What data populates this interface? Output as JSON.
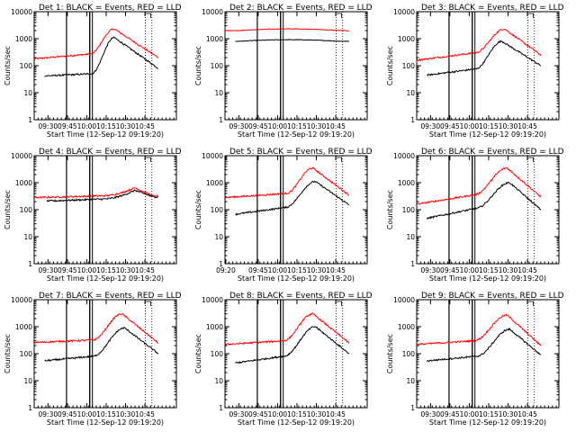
{
  "chart_data": [
    {
      "type": "line",
      "title": "Det 1: BLACK = Events, RED = LLD",
      "xlabel": "Start Time (12-Sep-12 09:19:20)",
      "ylabel": "Counts/sec",
      "ylog": true,
      "ylim": [
        1,
        10000
      ],
      "yticks": [
        "1",
        "10",
        "100",
        "1000",
        "10000"
      ],
      "xtick_labels": [
        "09:30",
        "09:45",
        "10:00",
        "10:15",
        "10:30",
        "10:45"
      ],
      "xrange_min": [
        0,
        110
      ],
      "xtick_min": [
        10.67,
        25.67,
        40.67,
        55.67,
        70.67,
        85.67
      ],
      "vlines": {
        "solid": [
          25,
          43
        ],
        "double": [
          44
        ],
        "dotted": [
          86,
          91
        ]
      },
      "series": [
        {
          "color": "#ff0000",
          "profile": "flare",
          "base": 180,
          "plateau": 270,
          "rise": [
            43,
            62
          ],
          "peak": 2300,
          "fall_end": 200,
          "start": 0
        },
        {
          "color": "#000000",
          "profile": "flare",
          "base": 40,
          "plateau": 50,
          "rise": [
            44,
            62
          ],
          "peak": 1100,
          "fall_end": 80,
          "start": 8
        }
      ]
    },
    {
      "type": "line",
      "title": "Det 2: BLACK = Events, RED = LLD",
      "xlabel": "Start Time (12-Sep-12 09:19:20)",
      "ylabel": "Counts/sec",
      "ylog": true,
      "ylim": [
        1,
        10000
      ],
      "yticks": [
        "1",
        "10",
        "100",
        "1000",
        "10000"
      ],
      "xtick_labels": [
        "09:30",
        "09:45",
        "10:00",
        "10:15",
        "10:30",
        "10:45"
      ],
      "xrange_min": [
        0,
        110
      ],
      "xtick_min": [
        10.67,
        25.67,
        40.67,
        55.67,
        70.67,
        85.67
      ],
      "vlines": {
        "solid": [
          25,
          43
        ],
        "double": [
          44
        ],
        "dotted": [
          86,
          91
        ]
      },
      "series": [
        {
          "color": "#ff0000",
          "profile": "flat",
          "base": 2000,
          "peak": 2400,
          "start": 0
        },
        {
          "color": "#000000",
          "profile": "flat",
          "base": 800,
          "peak": 950,
          "start": 8
        }
      ]
    },
    {
      "type": "line",
      "title": "Det 3: BLACK = Events, RED = LLD",
      "xlabel": "Start Time (12-Sep-12 09:19:20)",
      "ylabel": "Counts/sec",
      "ylog": true,
      "ylim": [
        1,
        10000
      ],
      "yticks": [
        "1",
        "10",
        "100",
        "1000",
        "10000"
      ],
      "xtick_labels": [
        "09:30",
        "09:45",
        "10:00",
        "10:15",
        "10:30",
        "10:45"
      ],
      "xrange_min": [
        0,
        110
      ],
      "xtick_min": [
        10.67,
        25.67,
        40.67,
        55.67,
        70.67,
        85.67
      ],
      "vlines": {
        "solid": [
          25,
          43
        ],
        "double": [
          44
        ],
        "dotted": [
          86,
          91
        ]
      },
      "series": [
        {
          "color": "#ff0000",
          "profile": "flare",
          "base": 160,
          "plateau": 300,
          "rise": [
            45,
            68
          ],
          "peak": 2300,
          "fall_end": 250,
          "start": 0
        },
        {
          "color": "#000000",
          "profile": "flare",
          "base": 40,
          "plateau": 75,
          "rise": [
            45,
            66
          ],
          "peak": 800,
          "fall_end": 100,
          "start": 8
        }
      ]
    },
    {
      "type": "line",
      "title": "Det 4: BLACK = Events, RED = LLD",
      "xlabel": "Start Time (12-Sep-12 09:19:20)",
      "ylabel": "Counts/sec",
      "ylog": true,
      "ylim": [
        1,
        10000
      ],
      "yticks": [
        "1",
        "10",
        "100",
        "1000",
        "10000"
      ],
      "xtick_labels": [
        "09:30",
        "09:45",
        "10:00",
        "10:15",
        "10:30",
        "10:45"
      ],
      "xrange_min": [
        0,
        110
      ],
      "xtick_min": [
        10.67,
        25.67,
        40.67,
        55.67,
        70.67,
        85.67
      ],
      "vlines": {
        "solid": [
          25,
          43
        ],
        "double": [
          44
        ],
        "dotted": [
          86,
          91
        ]
      },
      "series": [
        {
          "color": "#ff0000",
          "profile": "hump",
          "base": 280,
          "plateau": 330,
          "peak": 650,
          "fall_end": 320,
          "start": 0
        },
        {
          "color": "#000000",
          "profile": "hump",
          "base": 200,
          "plateau": 250,
          "peak": 520,
          "fall_end": 300,
          "start": 10
        }
      ]
    },
    {
      "type": "line",
      "title": "Det 5: BLACK = Events, RED = LLD",
      "xlabel": "Start Time (12-Sep-12 09:19:20)",
      "ylabel": "Counts/sec",
      "ylog": true,
      "ylim": [
        1,
        10000
      ],
      "yticks": [
        "1",
        "10",
        "100",
        "1000",
        "10000"
      ],
      "xtick_labels": [
        "09:20",
        "09:45",
        "10:00",
        "10:15",
        "10:30",
        "10:45"
      ],
      "xrange_min": [
        0,
        110
      ],
      "xtick_min": [
        0.67,
        25.67,
        40.67,
        55.67,
        70.67,
        85.67
      ],
      "vlines": {
        "solid": [
          25,
          43
        ],
        "double": [
          44
        ],
        "dotted": [
          86,
          91
        ]
      },
      "series": [
        {
          "color": "#ff0000",
          "profile": "flare",
          "base": 280,
          "plateau": 400,
          "rise": [
            47,
            68
          ],
          "peak": 3500,
          "fall_end": 350,
          "start": 0
        },
        {
          "color": "#000000",
          "profile": "flare",
          "base": 60,
          "plateau": 120,
          "rise": [
            46,
            70
          ],
          "peak": 1100,
          "fall_end": 150,
          "start": 8
        }
      ]
    },
    {
      "type": "line",
      "title": "Det 6: BLACK = Events, RED = LLD",
      "xlabel": "Start Time (12-Sep-12 09:19:20)",
      "ylabel": "Counts/sec",
      "ylog": true,
      "ylim": [
        1,
        10000
      ],
      "yticks": [
        "1",
        "10",
        "100",
        "1000",
        "10000"
      ],
      "xtick_labels": [
        "09:30",
        "09:45",
        "10:00",
        "10:15",
        "10:30",
        "10:45"
      ],
      "xrange_min": [
        0,
        110
      ],
      "xtick_min": [
        10.67,
        25.67,
        40.67,
        55.67,
        70.67,
        85.67
      ],
      "vlines": {
        "solid": [
          25,
          43
        ],
        "double": [
          44
        ],
        "dotted": [
          86,
          91
        ]
      },
      "series": [
        {
          "color": "#ff0000",
          "profile": "flare",
          "base": 160,
          "plateau": 350,
          "rise": [
            44,
            70
          ],
          "peak": 3500,
          "fall_end": 300,
          "start": 0
        },
        {
          "color": "#000000",
          "profile": "flare",
          "base": 40,
          "plateau": 110,
          "rise": [
            45,
            72
          ],
          "peak": 1000,
          "fall_end": 100,
          "start": 8
        }
      ]
    },
    {
      "type": "line",
      "title": "Det 7: BLACK = Events, RED = LLD",
      "xlabel": "Start Time (12-Sep-12 09:19:20)",
      "ylabel": "Counts/sec",
      "ylog": true,
      "ylim": [
        1,
        10000
      ],
      "yticks": [
        "1",
        "10",
        "100",
        "1000",
        "10000"
      ],
      "xtick_labels": [
        "09:30",
        "09:45",
        "10:00",
        "10:15",
        "10:30",
        "10:45"
      ],
      "xrange_min": [
        0,
        110
      ],
      "xtick_min": [
        10.67,
        25.67,
        40.67,
        55.67,
        70.67,
        85.67
      ],
      "vlines": {
        "solid": [
          25,
          43
        ],
        "double": [
          44
        ],
        "dotted": [
          86,
          91
        ]
      },
      "series": [
        {
          "color": "#ff0000",
          "profile": "flare",
          "base": 260,
          "plateau": 320,
          "rise": [
            45,
            68
          ],
          "peak": 3000,
          "fall_end": 250,
          "start": 0
        },
        {
          "color": "#000000",
          "profile": "flare",
          "base": 50,
          "plateau": 80,
          "rise": [
            45,
            70
          ],
          "peak": 900,
          "fall_end": 100,
          "start": 8
        }
      ]
    },
    {
      "type": "line",
      "title": "Det 8: BLACK = Events, RED = LLD",
      "xlabel": "Start Time (12-Sep-12 09:19:20)",
      "ylabel": "Counts/sec",
      "ylog": true,
      "ylim": [
        1,
        10000
      ],
      "yticks": [
        "1",
        "10",
        "100",
        "1000",
        "10000"
      ],
      "xtick_labels": [
        "09:30",
        "09:45",
        "10:00",
        "10:15",
        "10:30",
        "10:45"
      ],
      "xrange_min": [
        0,
        110
      ],
      "xtick_min": [
        10.67,
        25.67,
        40.67,
        55.67,
        70.67,
        85.67
      ],
      "vlines": {
        "solid": [
          25,
          43
        ],
        "double": [
          44
        ],
        "dotted": [
          86,
          91
        ]
      },
      "series": [
        {
          "color": "#ff0000",
          "profile": "flare",
          "base": 220,
          "plateau": 300,
          "rise": [
            45,
            68
          ],
          "peak": 3000,
          "fall_end": 250,
          "start": 0
        },
        {
          "color": "#000000",
          "profile": "flare",
          "base": 40,
          "plateau": 80,
          "rise": [
            45,
            70
          ],
          "peak": 1000,
          "fall_end": 100,
          "start": 8
        }
      ]
    },
    {
      "type": "line",
      "title": "Det 9: BLACK = Events, RED = LLD",
      "xlabel": "Start Time (12-Sep-12 09:19:20)",
      "ylabel": "Counts/sec",
      "ylog": true,
      "ylim": [
        1,
        10000
      ],
      "yticks": [
        "1",
        "10",
        "100",
        "1000",
        "10000"
      ],
      "xtick_labels": [
        "09:30",
        "09:45",
        "10:00",
        "10:15",
        "10:30",
        "10:45"
      ],
      "xrange_min": [
        0,
        110
      ],
      "xtick_min": [
        10.67,
        25.67,
        40.67,
        55.67,
        70.67,
        85.67
      ],
      "vlines": {
        "solid": [
          25,
          43
        ],
        "double": [
          44
        ],
        "dotted": [
          86,
          91
        ]
      },
      "series": [
        {
          "color": "#ff0000",
          "profile": "flare",
          "base": 220,
          "plateau": 300,
          "rise": [
            44,
            70
          ],
          "peak": 2700,
          "fall_end": 200,
          "start": 0
        },
        {
          "color": "#000000",
          "profile": "flare",
          "base": 50,
          "plateau": 80,
          "rise": [
            46,
            72
          ],
          "peak": 800,
          "fall_end": 90,
          "start": 8
        }
      ]
    }
  ]
}
